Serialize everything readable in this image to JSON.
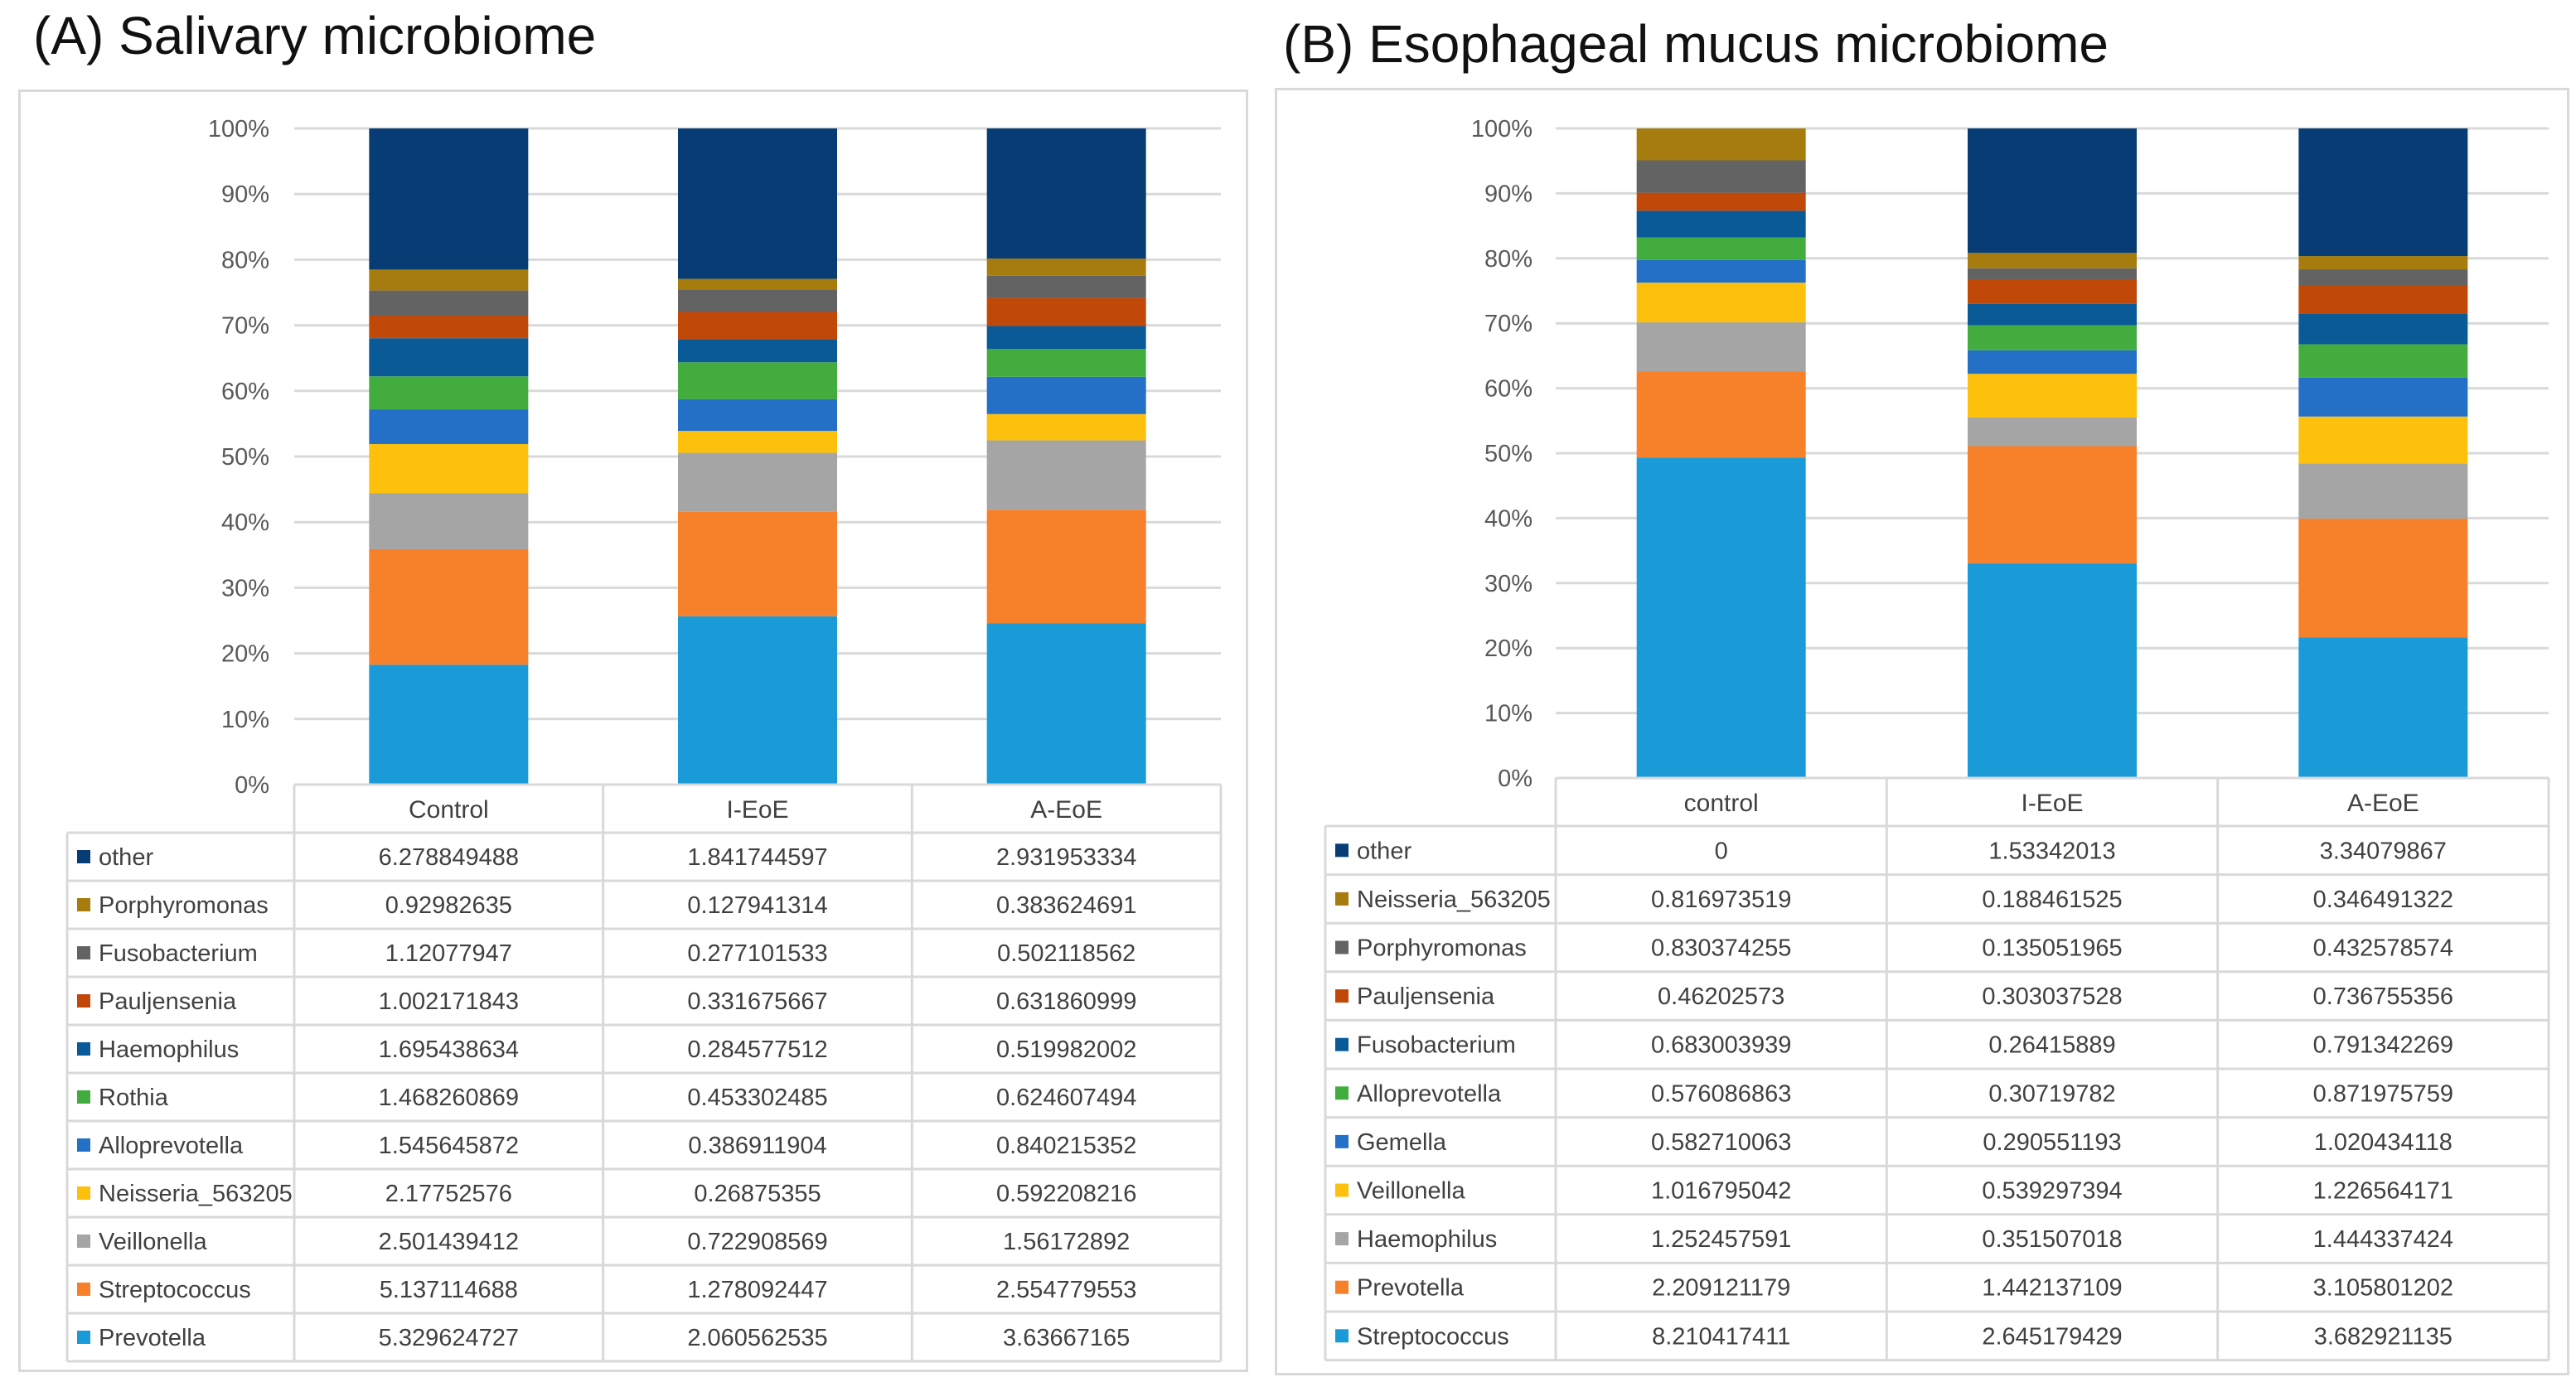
{
  "charts": [
    {
      "panel_title": "(A) Salivary microbiome",
      "chart_data": {
        "type": "bar",
        "stacked": "percent",
        "title": "(A) Salivary microbiome",
        "categories": [
          "Control",
          "I-EoE",
          "A-EoE"
        ],
        "yticks": [
          "0%",
          "10%",
          "20%",
          "30%",
          "40%",
          "50%",
          "60%",
          "70%",
          "80%",
          "90%",
          "100%"
        ],
        "ylim": [
          0,
          100
        ],
        "grid": true,
        "legend": "data-table-below",
        "series": [
          {
            "name": "Prevotella",
            "color": "#1a9bd8",
            "values": [
              "5.329624727",
              "2.060562535",
              "3.63667165"
            ]
          },
          {
            "name": "Streptococcus",
            "color": "#f7802a",
            "values": [
              "5.137114688",
              "1.278092447",
              "2.554779553"
            ]
          },
          {
            "name": "Veillonella",
            "color": "#a5a5a5",
            "values": [
              "2.501439412",
              "0.722908569",
              "1.56172892"
            ]
          },
          {
            "name": "Neisseria_563205",
            "color": "#fdc00d",
            "values": [
              "2.17752576",
              "0.26875355",
              "0.592208216"
            ]
          },
          {
            "name": "Alloprevotella",
            "color": "#2370c6",
            "values": [
              "1.545645872",
              "0.386911904",
              "0.840215352"
            ]
          },
          {
            "name": "Rothia",
            "color": "#43ac3f",
            "values": [
              "1.468260869",
              "0.453302485",
              "0.624607494"
            ]
          },
          {
            "name": "Haemophilus",
            "color": "#0a5a98",
            "values": [
              "1.695438634",
              "0.284577512",
              "0.519982002"
            ]
          },
          {
            "name": "Pauljensenia",
            "color": "#c04809",
            "values": [
              "1.002171843",
              "0.331675667",
              "0.631860999"
            ]
          },
          {
            "name": "Fusobacterium",
            "color": "#636363",
            "values": [
              "1.12077947",
              "0.277101533",
              "0.502118562"
            ]
          },
          {
            "name": "Porphyromonas",
            "color": "#a57c0d",
            "values": [
              "0.92982635",
              "0.127941314",
              "0.383624691"
            ]
          },
          {
            "name": "other",
            "color": "#073d74",
            "values": [
              "6.278849488",
              "1.841744597",
              "2.931953334"
            ]
          }
        ]
      }
    },
    {
      "panel_title": "(B) Esophageal mucus microbiome",
      "chart_data": {
        "type": "bar",
        "stacked": "percent",
        "title": "(B) Esophageal mucus microbiome",
        "categories": [
          "control",
          "I-EoE",
          "A-EoE"
        ],
        "yticks": [
          "0%",
          "10%",
          "20%",
          "30%",
          "40%",
          "50%",
          "60%",
          "70%",
          "80%",
          "90%",
          "100%"
        ],
        "ylim": [
          0,
          100
        ],
        "grid": true,
        "legend": "data-table-below",
        "series": [
          {
            "name": "Streptococcus",
            "color": "#1a9bd8",
            "values": [
              "8.210417411",
              "2.645179429",
              "3.682921135"
            ]
          },
          {
            "name": "Prevotella",
            "color": "#f7802a",
            "values": [
              "2.209121179",
              "1.442137109",
              "3.105801202"
            ]
          },
          {
            "name": "Haemophilus",
            "color": "#a5a5a5",
            "values": [
              "1.252457591",
              "0.351507018",
              "1.444337424"
            ]
          },
          {
            "name": "Veillonella",
            "color": "#fdc00d",
            "values": [
              "1.016795042",
              "0.539297394",
              "1.226564171"
            ]
          },
          {
            "name": "Gemella",
            "color": "#2370c6",
            "values": [
              "0.582710063",
              "0.290551193",
              "1.020434118"
            ]
          },
          {
            "name": "Alloprevotella",
            "color": "#43ac3f",
            "values": [
              "0.576086863",
              "0.30719782",
              "0.871975759"
            ]
          },
          {
            "name": "Fusobacterium",
            "color": "#0a5a98",
            "values": [
              "0.683003939",
              "0.26415889",
              "0.791342269"
            ]
          },
          {
            "name": "Pauljensenia",
            "color": "#c04809",
            "values": [
              "0.46202573",
              "0.303037528",
              "0.736755356"
            ]
          },
          {
            "name": "Porphyromonas",
            "color": "#636363",
            "values": [
              "0.830374255",
              "0.135051965",
              "0.432578574"
            ]
          },
          {
            "name": "Neisseria_563205",
            "color": "#a57c0d",
            "values": [
              "0.816973519",
              "0.188461525",
              "0.346491322"
            ]
          },
          {
            "name": "other",
            "color": "#073d74",
            "values": [
              "0",
              "1.53342013",
              "3.34079867"
            ]
          }
        ]
      }
    }
  ]
}
